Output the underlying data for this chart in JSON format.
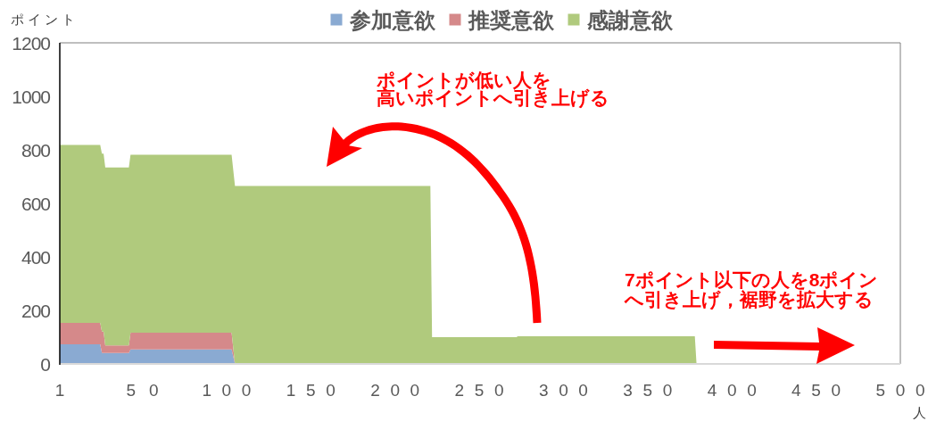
{
  "chart_data": {
    "type": "area",
    "stacked": true,
    "x": [
      1,
      25,
      26,
      27,
      28,
      42,
      43,
      103,
      105,
      221,
      222,
      272,
      273,
      378,
      379
    ],
    "series": [
      {
        "name": "参加意欲",
        "color": "#8aaad2",
        "values": [
          73,
          73,
          41,
          41,
          41,
          41,
          54,
          54,
          0,
          0,
          0,
          0,
          0,
          0,
          0
        ]
      },
      {
        "name": "推奨意欲",
        "color": "#d5898a",
        "values": [
          80,
          80,
          80,
          80,
          28,
          28,
          63,
          63,
          0,
          0,
          0,
          0,
          0,
          0,
          0
        ]
      },
      {
        "name": "感謝意欲",
        "color": "#b0ca7d",
        "values": [
          665,
          665,
          665,
          665,
          665,
          665,
          665,
          665,
          665,
          665,
          100,
          100,
          103,
          103,
          0
        ]
      }
    ],
    "xlim": [
      1,
      500
    ],
    "xticks": [
      1,
      50,
      100,
      150,
      200,
      250,
      300,
      350,
      400,
      450,
      500
    ],
    "ylim": [
      0,
      1200
    ],
    "yticks": [
      0,
      200,
      400,
      600,
      800,
      1000,
      1200
    ],
    "ylabel": "ポイント",
    "xlabel": "人",
    "legend": "top",
    "annotations": [
      "ポイントが低い人を高いポイントへ引き上げる",
      "7ポイント以下の人を8ポインへ引き上げ，裾野を拡大する"
    ]
  }
}
